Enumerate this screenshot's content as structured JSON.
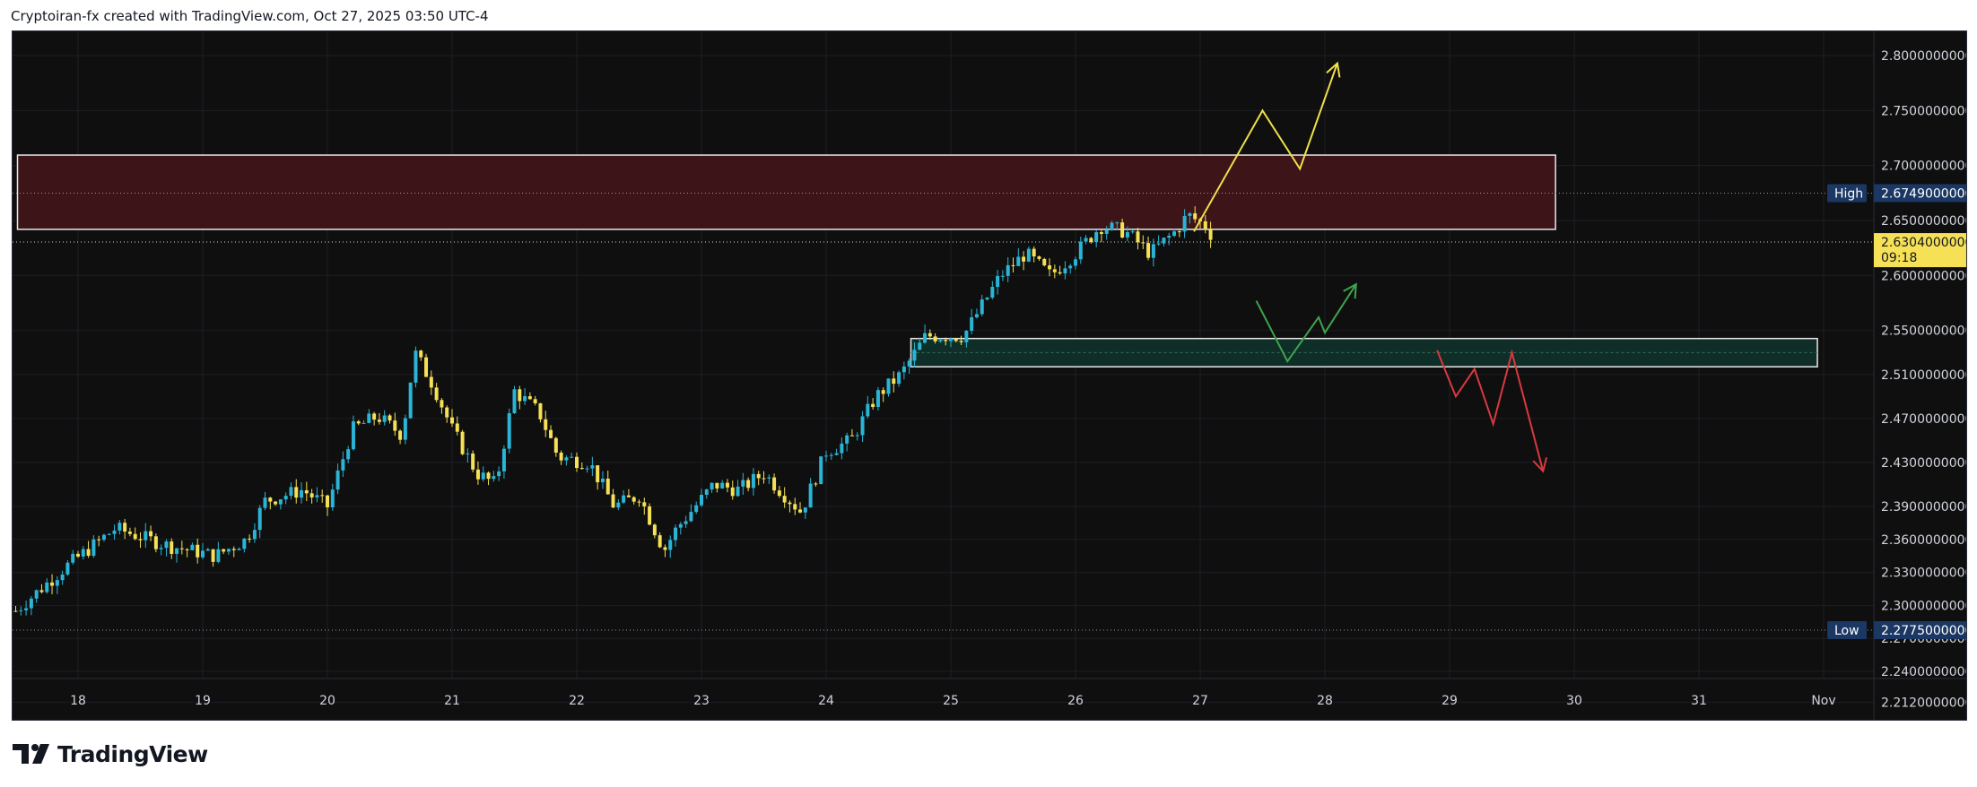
{
  "header": {
    "text": "Cryptoiran-fx created with TradingView.com, Oct 27, 2025 03:50 UTC-4"
  },
  "footer": {
    "brand": "TradingView"
  },
  "colors": {
    "bull": "#2ab5d6",
    "bear": "#f5e056",
    "background": "#0f0f0f",
    "resistance_zone": "#3d1519",
    "support_zone": "#0f2e27",
    "path_up": "#f0e04a",
    "path_mid": "#3fa34d",
    "path_down": "#d9393f",
    "badge_navy": "#1b3764",
    "badge_price": "#f5e056"
  },
  "chart_data": {
    "type": "candlestick",
    "title": "",
    "xlabel": "",
    "ylabel": "",
    "x_ticks": [
      "18",
      "19",
      "20",
      "21",
      "22",
      "23",
      "24",
      "25",
      "26",
      "27",
      "28",
      "29",
      "30",
      "31",
      "Nov"
    ],
    "y_ticks": [
      "2.8000000000",
      "2.7500000000",
      "2.7000000000",
      "2.6500000000",
      "2.6000000000",
      "2.5500000000",
      "2.5100000000",
      "2.4700000000",
      "2.4300000000",
      "2.3900000000",
      "2.3600000000",
      "2.3300000000",
      "2.3000000000",
      "2.2700000000",
      "2.2400000000",
      "2.2120000000"
    ],
    "ylim": [
      2.196,
      2.822
    ],
    "grid": true,
    "high": {
      "label": "High",
      "value": "2.6749000000"
    },
    "low": {
      "label": "Low",
      "value": "2.2775000000"
    },
    "last_price": {
      "value": "2.6304000000",
      "countdown": "09:18"
    },
    "price_series_day": [
      [
        17.5,
        2.295
      ],
      [
        17.9,
        2.335
      ],
      [
        18.3,
        2.37
      ],
      [
        18.7,
        2.355
      ],
      [
        19.1,
        2.345
      ],
      [
        19.35,
        2.36
      ],
      [
        19.5,
        2.395
      ],
      [
        19.8,
        2.405
      ],
      [
        20.0,
        2.39
      ],
      [
        20.2,
        2.46
      ],
      [
        20.4,
        2.472
      ],
      [
        20.6,
        2.455
      ],
      [
        20.7,
        2.53
      ],
      [
        20.85,
        2.5
      ],
      [
        21.0,
        2.46
      ],
      [
        21.2,
        2.42
      ],
      [
        21.35,
        2.41
      ],
      [
        21.5,
        2.495
      ],
      [
        21.7,
        2.475
      ],
      [
        21.85,
        2.435
      ],
      [
        22.1,
        2.43
      ],
      [
        22.3,
        2.39
      ],
      [
        22.5,
        2.4
      ],
      [
        22.7,
        2.35
      ],
      [
        22.8,
        2.37
      ],
      [
        23.1,
        2.41
      ],
      [
        23.3,
        2.405
      ],
      [
        23.5,
        2.42
      ],
      [
        23.8,
        2.385
      ],
      [
        24.0,
        2.44
      ],
      [
        24.2,
        2.45
      ],
      [
        24.4,
        2.49
      ],
      [
        24.6,
        2.51
      ],
      [
        24.8,
        2.545
      ],
      [
        25.1,
        2.545
      ],
      [
        25.4,
        2.6
      ],
      [
        25.6,
        2.62
      ],
      [
        25.8,
        2.6
      ],
      [
        26.0,
        2.62
      ],
      [
        26.2,
        2.645
      ],
      [
        26.4,
        2.64
      ],
      [
        26.6,
        2.62
      ],
      [
        26.8,
        2.64
      ],
      [
        26.9,
        2.655
      ],
      [
        27.05,
        2.645
      ],
      [
        27.12,
        2.6304
      ]
    ],
    "resistance_zone": {
      "from_day": 17.5,
      "to_day": 29.85,
      "y_low": 2.642,
      "y_high": 2.7095
    },
    "support_zone": {
      "from_day": 24.68,
      "to_day": 31.95,
      "y_low": 2.517,
      "y_high": 2.5427
    },
    "scenario_up": [
      [
        26.95,
        2.64
      ],
      [
        27.5,
        2.75
      ],
      [
        27.8,
        2.697
      ],
      [
        28.1,
        2.793
      ]
    ],
    "scenario_mid": [
      [
        27.45,
        2.577
      ],
      [
        27.7,
        2.522
      ],
      [
        27.95,
        2.562
      ],
      [
        28.0,
        2.548
      ],
      [
        28.25,
        2.592
      ]
    ],
    "scenario_down": [
      [
        28.9,
        2.532
      ],
      [
        29.05,
        2.49
      ],
      [
        29.2,
        2.515
      ],
      [
        29.35,
        2.465
      ],
      [
        29.5,
        2.53
      ],
      [
        29.75,
        2.422
      ]
    ]
  }
}
